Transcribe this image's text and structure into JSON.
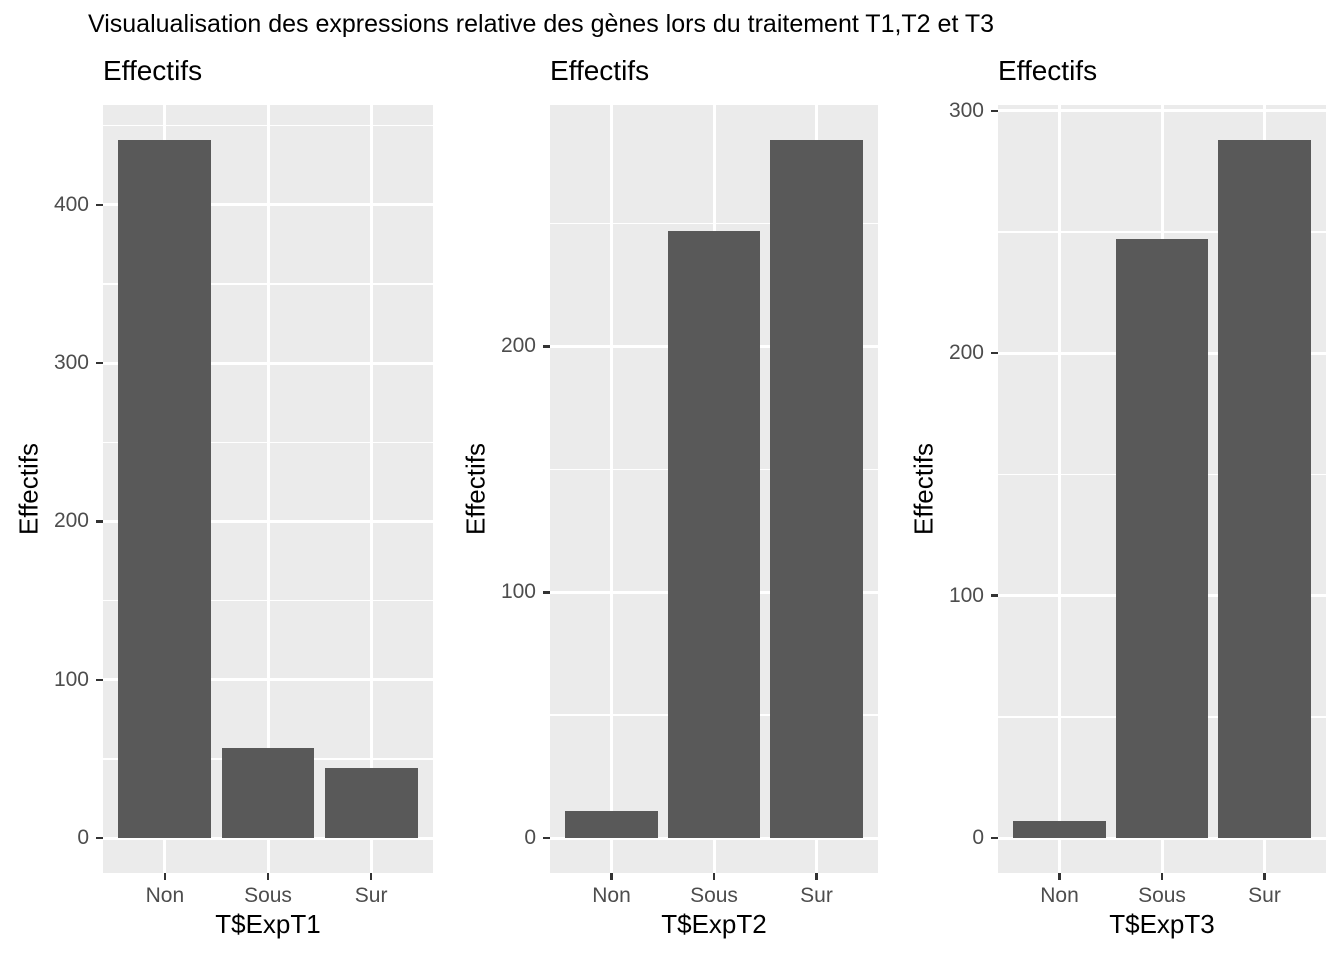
{
  "title": "Visualualisation des expressions relative des gènes lors du traitement T1,T2 et T3",
  "colors": {
    "bar_fill": "#595959",
    "panel_background": "#EBEBEB",
    "gridline": "#FFFFFF",
    "tick_mark": "#333333",
    "tick_label_text": "#4D4D4D",
    "title_text": "#000000",
    "page_background": "#FFFFFF"
  },
  "chart_data": [
    {
      "type": "bar",
      "panel_title": "Effectifs",
      "xlabel": "T$ExpT1",
      "ylabel": "Effectifs",
      "categories": [
        "Non",
        "Sous",
        "Sur"
      ],
      "values": [
        441,
        57,
        44
      ],
      "y_ticks": [
        0,
        100,
        200,
        300,
        400
      ],
      "y_minor_ticks": [
        50,
        150,
        250,
        350,
        450
      ],
      "ylim": [
        -22,
        463
      ],
      "grid": "major and minor horizontal white lines, major vertical white lines at category centers",
      "legend": "none"
    },
    {
      "type": "bar",
      "panel_title": "Effectifs",
      "xlabel": "T$ExpT2",
      "ylabel": "Effectifs",
      "categories": [
        "Non",
        "Sous",
        "Sur"
      ],
      "values": [
        11,
        247,
        284
      ],
      "y_ticks": [
        0,
        100,
        200
      ],
      "y_minor_ticks": [
        50,
        150,
        250
      ],
      "ylim": [
        -14,
        298
      ],
      "grid": "major and minor horizontal white lines, major vertical white lines at category centers",
      "legend": "none"
    },
    {
      "type": "bar",
      "panel_title": "Effectifs",
      "xlabel": "T$ExpT3",
      "ylabel": "Effectifs",
      "categories": [
        "Non",
        "Sous",
        "Sur"
      ],
      "values": [
        7,
        247,
        288
      ],
      "y_ticks": [
        0,
        100,
        200,
        300
      ],
      "y_minor_ticks": [
        50,
        150,
        250
      ],
      "ylim": [
        -14,
        302
      ],
      "grid": "major and minor horizontal white lines, major vertical white lines at category centers",
      "legend": "none"
    }
  ]
}
